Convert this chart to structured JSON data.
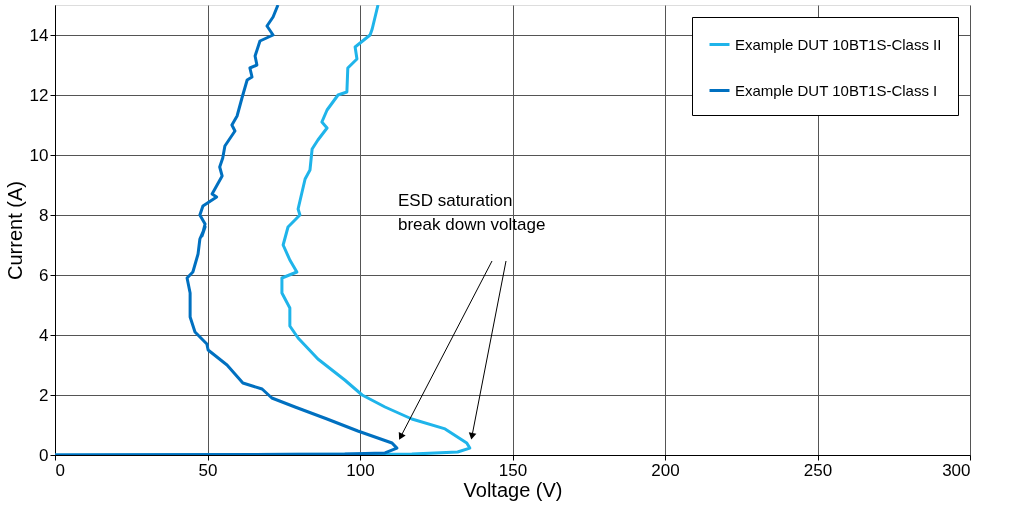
{
  "chart_data": {
    "type": "line",
    "xlabel": "Voltage (V)",
    "ylabel": "Current (A)",
    "xlim": [
      0,
      300
    ],
    "ylim": [
      0,
      15
    ],
    "xticks": [
      0,
      50,
      100,
      150,
      200,
      250,
      300
    ],
    "yticks": [
      0,
      2,
      4,
      6,
      8,
      10,
      12,
      14
    ],
    "grid": true,
    "legend": "top right",
    "line_style": "solid",
    "marker": "none",
    "annotations": [
      "ESD saturation\nbreak down voltage"
    ],
    "series": [
      {
        "name": "Example DUT 10BT1S-Class II",
        "color": "#1fb4ea",
        "x": [
          0,
          117,
          132,
          136,
          135,
          127.9,
          117,
          108.2,
          100.7,
          95,
          86.2,
          79.7,
          77,
          77,
          74.4,
          74.4,
          79.3,
          77,
          74.8,
          76.4,
          80.3,
          79.7,
          82,
          83.6,
          84.3,
          86.2,
          89.2,
          87.5,
          89.2,
          92.8,
          95.7,
          96,
          99,
          98.4,
          103.3,
          104,
          105.9
        ],
        "values": [
          0,
          0.03,
          0.1,
          0.23,
          0.4,
          0.87,
          1.2,
          1.6,
          2.0,
          2.5,
          3.2,
          3.9,
          4.3,
          4.9,
          5.4,
          5.9,
          6.1,
          6.5,
          7.0,
          7.6,
          8.0,
          8.2,
          9.2,
          9.5,
          10.2,
          10.5,
          10.9,
          11.1,
          11.5,
          12.0,
          12.1,
          12.9,
          13.2,
          13.6,
          14.0,
          14.2,
          15.0
        ]
      },
      {
        "name": "Example DUT 10BT1S-Class I",
        "color": "#0070c0",
        "x": [
          0,
          95,
          108.2,
          112.1,
          110.5,
          99.3,
          89.2,
          78.7,
          71.1,
          67.9,
          61.6,
          59,
          56.4,
          50.2,
          49.8,
          45.9,
          44.3,
          44.3,
          43.3,
          45.2,
          46.9,
          47.5,
          49.2,
          48.2,
          49.2,
          47.5,
          48.5,
          53,
          51.5,
          54.8,
          54,
          55,
          55.7,
          59,
          58,
          59.7,
          61.3,
          63,
          64.6,
          63.9,
          66.2,
          65.6,
          67.2,
          71.5,
          69.5,
          71.5,
          73.1
        ],
        "values": [
          0,
          0.03,
          0.07,
          0.23,
          0.4,
          0.8,
          1.2,
          1.6,
          1.9,
          2.2,
          2.4,
          2.7,
          3.0,
          3.5,
          3.7,
          4.1,
          4.6,
          5.4,
          5.9,
          6.1,
          6.7,
          7.2,
          7.6,
          7.3,
          7.7,
          8.0,
          8.3,
          8.6,
          8.7,
          9.3,
          9.6,
          9.9,
          10.3,
          10.8,
          11.0,
          11.3,
          11.9,
          12.5,
          12.6,
          12.9,
          13.0,
          13.3,
          13.8,
          14.0,
          14.3,
          14.6,
          15.0
        ]
      }
    ]
  }
}
